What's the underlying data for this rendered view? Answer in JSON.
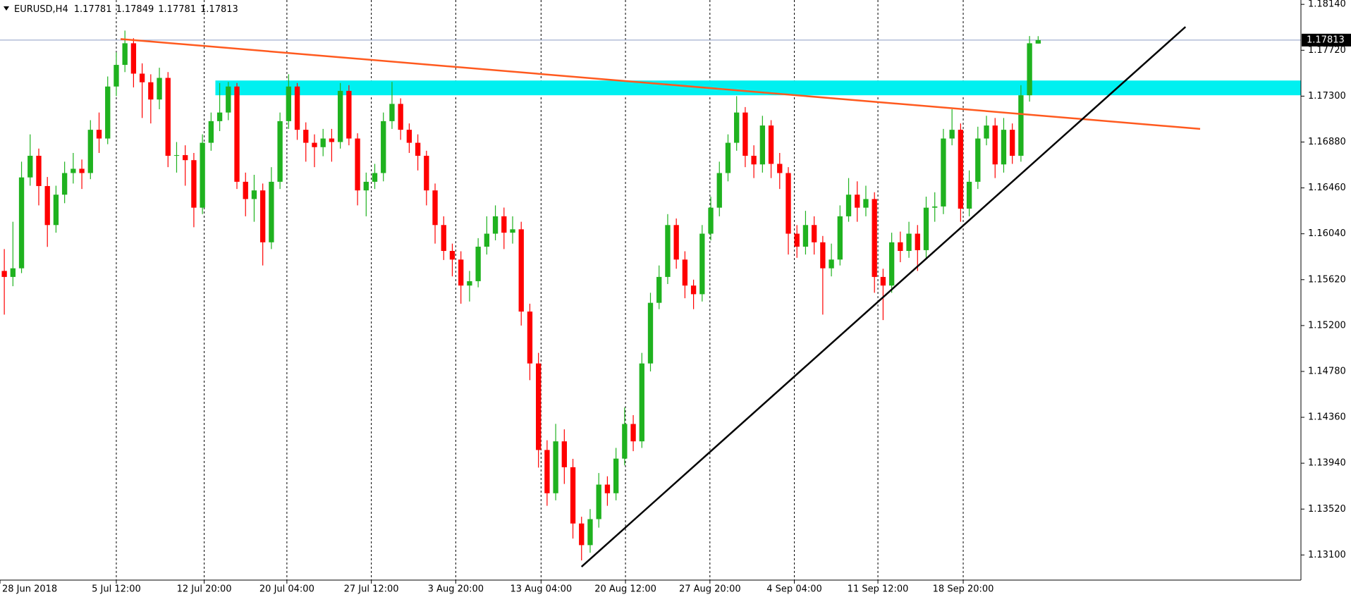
{
  "chart_data": {
    "type": "candlestick",
    "title": "EURUSD,H4",
    "up_color": "#1fb21f",
    "down_color": "#ff0000",
    "grid": true,
    "xlim": [
      0,
      151
    ],
    "ylim": [
      1.1287,
      1.1818
    ],
    "xticks": [
      {
        "value": 0,
        "label": "28 Jun 2018"
      },
      {
        "value": 13.5,
        "label": "5 Jul 12:00"
      },
      {
        "value": 23.7,
        "label": "12 Jul 20:00"
      },
      {
        "value": 33.3,
        "label": "20 Jul 04:00"
      },
      {
        "value": 43.1,
        "label": "27 Jul 12:00"
      },
      {
        "value": 52.9,
        "label": "3 Aug 20:00"
      },
      {
        "value": 62.8,
        "label": "13 Aug 04:00"
      },
      {
        "value": 72.6,
        "label": "20 Aug 12:00"
      },
      {
        "value": 82.4,
        "label": "27 Aug 20:00"
      },
      {
        "value": 92.2,
        "label": "4 Sep 04:00"
      },
      {
        "value": 101.9,
        "label": "11 Sep 12:00"
      },
      {
        "value": 111.8,
        "label": "18 Sep 20:00"
      }
    ],
    "yticks": [
      {
        "value": 1.1814,
        "label": "1.18140"
      },
      {
        "value": 1.1772,
        "label": "1.17720"
      },
      {
        "value": 1.173,
        "label": "1.17300"
      },
      {
        "value": 1.1688,
        "label": "1.16880"
      },
      {
        "value": 1.1646,
        "label": "1.16460"
      },
      {
        "value": 1.1604,
        "label": "1.16040"
      },
      {
        "value": 1.1562,
        "label": "1.15620"
      },
      {
        "value": 1.152,
        "label": "1.15200"
      },
      {
        "value": 1.1478,
        "label": "1.14780"
      },
      {
        "value": 1.1436,
        "label": "1.14360"
      },
      {
        "value": 1.1394,
        "label": "1.13940"
      },
      {
        "value": 1.1352,
        "label": "1.13520"
      },
      {
        "value": 1.131,
        "label": "1.13100"
      }
    ],
    "ohlc": [
      [
        1.157,
        1.159,
        1.153,
        1.15645
      ],
      [
        1.15645,
        1.1615,
        1.1556,
        1.15724
      ],
      [
        1.15724,
        1.167,
        1.1568,
        1.16556
      ],
      [
        1.16556,
        1.1695,
        1.1648,
        1.16754
      ],
      [
        1.16754,
        1.1682,
        1.163,
        1.16477
      ],
      [
        1.16477,
        1.1656,
        1.1592,
        1.1612
      ],
      [
        1.1612,
        1.1648,
        1.1605,
        1.16398
      ],
      [
        1.16398,
        1.167,
        1.1632,
        1.16596
      ],
      [
        1.16596,
        1.1678,
        1.165,
        1.16635
      ],
      [
        1.16635,
        1.1672,
        1.1645,
        1.16596
      ],
      [
        1.16596,
        1.1708,
        1.1654,
        1.16992
      ],
      [
        1.16992,
        1.1715,
        1.1678,
        1.16912
      ],
      [
        1.16912,
        1.1748,
        1.1686,
        1.17388
      ],
      [
        1.17388,
        1.177,
        1.173,
        1.17586
      ],
      [
        1.17586,
        1.179,
        1.1752,
        1.17784
      ],
      [
        1.17784,
        1.1783,
        1.1738,
        1.17506
      ],
      [
        1.17506,
        1.176,
        1.171,
        1.17427
      ],
      [
        1.17427,
        1.175,
        1.1705,
        1.17269
      ],
      [
        1.17269,
        1.1756,
        1.1718,
        1.17467
      ],
      [
        1.17467,
        1.1752,
        1.1665,
        1.16754
      ],
      [
        1.16754,
        1.1688,
        1.166,
        1.1676
      ],
      [
        1.1676,
        1.1685,
        1.1648,
        1.16714
      ],
      [
        1.16714,
        1.1678,
        1.161,
        1.16279
      ],
      [
        1.16279,
        1.1695,
        1.1622,
        1.16873
      ],
      [
        1.16873,
        1.1715,
        1.168,
        1.17071
      ],
      [
        1.17071,
        1.1742,
        1.1698,
        1.1715
      ],
      [
        1.1715,
        1.1743,
        1.1708,
        1.17388
      ],
      [
        1.17388,
        1.1742,
        1.1645,
        1.16516
      ],
      [
        1.16516,
        1.166,
        1.162,
        1.16358
      ],
      [
        1.16358,
        1.1658,
        1.1615,
        1.16437
      ],
      [
        1.16437,
        1.165,
        1.1575,
        1.15962
      ],
      [
        1.15962,
        1.1665,
        1.159,
        1.16516
      ],
      [
        1.16516,
        1.1715,
        1.1645,
        1.17071
      ],
      [
        1.17071,
        1.175,
        1.17,
        1.17388
      ],
      [
        1.17388,
        1.1742,
        1.169,
        1.16992
      ],
      [
        1.16992,
        1.1706,
        1.167,
        1.16873
      ],
      [
        1.16873,
        1.1695,
        1.1665,
        1.16833
      ],
      [
        1.16833,
        1.17,
        1.1675,
        1.16912
      ],
      [
        1.16912,
        1.17,
        1.167,
        1.1688
      ],
      [
        1.1688,
        1.1742,
        1.1682,
        1.17348
      ],
      [
        1.17348,
        1.174,
        1.1685,
        1.16912
      ],
      [
        1.16912,
        1.1696,
        1.163,
        1.16437
      ],
      [
        1.16437,
        1.166,
        1.162,
        1.16516
      ],
      [
        1.16516,
        1.1668,
        1.1645,
        1.16596
      ],
      [
        1.16596,
        1.1715,
        1.1652,
        1.17071
      ],
      [
        1.17071,
        1.1743,
        1.17,
        1.17229
      ],
      [
        1.17229,
        1.1728,
        1.169,
        1.16992
      ],
      [
        1.16992,
        1.1705,
        1.1678,
        1.16873
      ],
      [
        1.16873,
        1.1695,
        1.1662,
        1.16754
      ],
      [
        1.16754,
        1.168,
        1.163,
        1.16437
      ],
      [
        1.16437,
        1.165,
        1.1595,
        1.1612
      ],
      [
        1.1612,
        1.162,
        1.158,
        1.15883
      ],
      [
        1.15883,
        1.1595,
        1.1565,
        1.15804
      ],
      [
        1.15804,
        1.1588,
        1.154,
        1.15566
      ],
      [
        1.15566,
        1.157,
        1.1542,
        1.15606
      ],
      [
        1.15606,
        1.16,
        1.1555,
        1.15922
      ],
      [
        1.15922,
        1.162,
        1.1585,
        1.16041
      ],
      [
        1.16041,
        1.163,
        1.1598,
        1.162
      ],
      [
        1.162,
        1.1628,
        1.159,
        1.1605
      ],
      [
        1.1605,
        1.162,
        1.1595,
        1.16081
      ],
      [
        1.16081,
        1.1615,
        1.152,
        1.15328
      ],
      [
        1.15328,
        1.154,
        1.147,
        1.14853
      ],
      [
        1.14853,
        1.1495,
        1.139,
        1.14061
      ],
      [
        1.14061,
        1.1415,
        1.1355,
        1.13665
      ],
      [
        1.13665,
        1.143,
        1.136,
        1.1414
      ],
      [
        1.1414,
        1.1425,
        1.1375,
        1.13903
      ],
      [
        1.13903,
        1.1398,
        1.1325,
        1.13388
      ],
      [
        1.13388,
        1.1345,
        1.1305,
        1.1319
      ],
      [
        1.1319,
        1.1352,
        1.1312,
        1.13428
      ],
      [
        1.13428,
        1.1385,
        1.1335,
        1.13744
      ],
      [
        1.13744,
        1.1382,
        1.1355,
        1.13665
      ],
      [
        1.13665,
        1.1408,
        1.136,
        1.13982
      ],
      [
        1.13982,
        1.1445,
        1.1392,
        1.14299
      ],
      [
        1.14299,
        1.1438,
        1.1405,
        1.1414
      ],
      [
        1.1414,
        1.1495,
        1.1408,
        1.14853
      ],
      [
        1.14853,
        1.155,
        1.1478,
        1.15408
      ],
      [
        1.15408,
        1.1575,
        1.1535,
        1.15645
      ],
      [
        1.15645,
        1.1622,
        1.1558,
        1.1612
      ],
      [
        1.1612,
        1.1618,
        1.1572,
        1.15804
      ],
      [
        1.15804,
        1.1588,
        1.1545,
        1.15566
      ],
      [
        1.15566,
        1.1562,
        1.1535,
        1.15487
      ],
      [
        1.15487,
        1.1612,
        1.1542,
        1.16041
      ],
      [
        1.16041,
        1.1638,
        1.1598,
        1.16279
      ],
      [
        1.16279,
        1.167,
        1.162,
        1.16596
      ],
      [
        1.16596,
        1.1695,
        1.1652,
        1.16873
      ],
      [
        1.16873,
        1.173,
        1.168,
        1.1715
      ],
      [
        1.1715,
        1.172,
        1.1665,
        1.16754
      ],
      [
        1.16754,
        1.1685,
        1.1655,
        1.16675
      ],
      [
        1.16675,
        1.1712,
        1.166,
        1.17031
      ],
      [
        1.17031,
        1.1708,
        1.1655,
        1.1668
      ],
      [
        1.1668,
        1.1678,
        1.1645,
        1.16596
      ],
      [
        1.16596,
        1.1665,
        1.1585,
        1.16041
      ],
      [
        1.16041,
        1.1612,
        1.1582,
        1.15922
      ],
      [
        1.15922,
        1.1625,
        1.1585,
        1.1612
      ],
      [
        1.1612,
        1.162,
        1.1585,
        1.15962
      ],
      [
        1.15962,
        1.1602,
        1.153,
        1.15724
      ],
      [
        1.15724,
        1.1595,
        1.1565,
        1.15804
      ],
      [
        1.15804,
        1.163,
        1.1575,
        1.162
      ],
      [
        1.162,
        1.1655,
        1.1615,
        1.16398
      ],
      [
        1.16398,
        1.1652,
        1.1615,
        1.16279
      ],
      [
        1.16279,
        1.1648,
        1.162,
        1.16358
      ],
      [
        1.16358,
        1.1642,
        1.155,
        1.15645
      ],
      [
        1.15645,
        1.1572,
        1.1525,
        1.15566
      ],
      [
        1.15566,
        1.1605,
        1.155,
        1.15962
      ],
      [
        1.15962,
        1.1606,
        1.1578,
        1.15883
      ],
      [
        1.15883,
        1.1615,
        1.1582,
        1.16041
      ],
      [
        1.16041,
        1.1612,
        1.157,
        1.1589
      ],
      [
        1.1589,
        1.1638,
        1.1582,
        1.16279
      ],
      [
        1.16279,
        1.1642,
        1.1615,
        1.1629
      ],
      [
        1.1629,
        1.17,
        1.1622,
        1.16912
      ],
      [
        1.16912,
        1.1718,
        1.1685,
        1.16992
      ],
      [
        1.16992,
        1.1705,
        1.1615,
        1.1627
      ],
      [
        1.1627,
        1.1662,
        1.162,
        1.16516
      ],
      [
        1.16516,
        1.1702,
        1.1645,
        1.16912
      ],
      [
        1.16912,
        1.1712,
        1.1685,
        1.17031
      ],
      [
        1.17031,
        1.171,
        1.1655,
        1.16675
      ],
      [
        1.16675,
        1.171,
        1.166,
        1.16992
      ],
      [
        1.16992,
        1.1705,
        1.1668,
        1.16754
      ],
      [
        1.16754,
        1.174,
        1.167,
        1.17308
      ],
      [
        1.17308,
        1.1785,
        1.1725,
        1.17784
      ],
      [
        1.17781,
        1.17849,
        1.17781,
        1.17813
      ]
    ],
    "price_line_color": "#8c9cc4",
    "resistance_line": {
      "color": "#ff5a1f",
      "x": [
        14.0,
        139.3
      ],
      "y": [
        1.17823,
        1.17
      ]
    },
    "support_line": {
      "color": "#000000",
      "x": [
        67.5,
        137.6
      ],
      "y": [
        1.12992,
        1.17934
      ]
    },
    "zone": {
      "color": "#00f0f0",
      "x": [
        25.0,
        151
      ],
      "y": [
        1.17443,
        1.17308
      ]
    }
  }
}
